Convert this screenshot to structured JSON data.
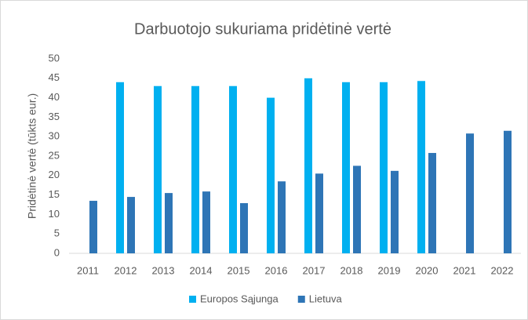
{
  "chart_data": {
    "type": "bar",
    "title": "Darbuotojo sukuriama pridėtinė vertė",
    "y_label": "Pridėtinė vertė (tūkts eur.)",
    "categories": [
      "2011",
      "2012",
      "2013",
      "2014",
      "2015",
      "2016",
      "2017",
      "2018",
      "2019",
      "2020",
      "2021",
      "2022"
    ],
    "series": [
      {
        "name": "Europos Sąjunga",
        "color": "#00b0f0",
        "values": [
          null,
          44,
          43,
          43,
          43,
          40,
          45,
          44,
          44,
          44.3,
          null,
          null
        ]
      },
      {
        "name": "Lietuva",
        "color": "#2e75b6",
        "values": [
          13.5,
          14.5,
          15.5,
          15.9,
          12.9,
          18.5,
          20.5,
          22.5,
          21.2,
          25.8,
          30.8,
          31.5
        ]
      }
    ],
    "ylim": [
      0,
      50
    ],
    "yticks": [
      0,
      5,
      10,
      15,
      20,
      25,
      30,
      35,
      40,
      45,
      50
    ],
    "grid": false,
    "legend": "bottom"
  }
}
